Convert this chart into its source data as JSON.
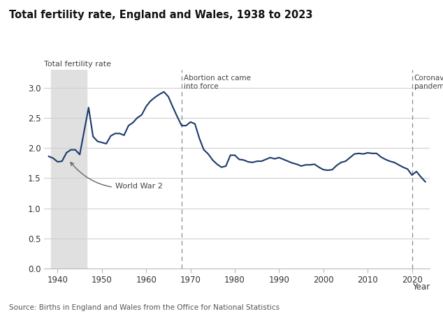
{
  "title": "Total fertility rate, England and Wales, 1938 to 2023",
  "ylabel": "Total fertility rate",
  "xlabel": "Year",
  "source": "Source: Births in England and Wales from the Office for National Statistics",
  "line_color": "#1a3a6b",
  "background_color": "#ffffff",
  "ww2_shade_color": "#e0e0e0",
  "ww2_start": 1938.5,
  "ww2_end": 1946.5,
  "abortion_act_year": 1968,
  "covid_year": 2020,
  "ylim": [
    0.0,
    3.3
  ],
  "yticks": [
    0.0,
    0.5,
    1.0,
    1.5,
    2.0,
    2.5,
    3.0
  ],
  "xlim": [
    1937,
    2024
  ],
  "xticks": [
    1940,
    1950,
    1960,
    1970,
    1980,
    1990,
    2000,
    2010,
    2020
  ],
  "years": [
    1938,
    1939,
    1940,
    1941,
    1942,
    1943,
    1944,
    1945,
    1946,
    1947,
    1948,
    1949,
    1950,
    1951,
    1952,
    1953,
    1954,
    1955,
    1956,
    1957,
    1958,
    1959,
    1960,
    1961,
    1962,
    1963,
    1964,
    1965,
    1966,
    1967,
    1968,
    1969,
    1970,
    1971,
    1972,
    1973,
    1974,
    1975,
    1976,
    1977,
    1978,
    1979,
    1980,
    1981,
    1982,
    1983,
    1984,
    1985,
    1986,
    1987,
    1988,
    1989,
    1990,
    1991,
    1992,
    1993,
    1994,
    1995,
    1996,
    1997,
    1998,
    1999,
    2000,
    2001,
    2002,
    2003,
    2004,
    2005,
    2006,
    2007,
    2008,
    2009,
    2010,
    2011,
    2012,
    2013,
    2014,
    2015,
    2016,
    2017,
    2018,
    2019,
    2020,
    2021,
    2022,
    2023
  ],
  "tfr": [
    1.86,
    1.83,
    1.77,
    1.78,
    1.92,
    1.97,
    1.97,
    1.89,
    2.28,
    2.67,
    2.19,
    2.11,
    2.09,
    2.07,
    2.2,
    2.24,
    2.24,
    2.21,
    2.37,
    2.42,
    2.5,
    2.55,
    2.69,
    2.78,
    2.84,
    2.89,
    2.93,
    2.85,
    2.68,
    2.52,
    2.37,
    2.37,
    2.43,
    2.4,
    2.16,
    1.97,
    1.9,
    1.8,
    1.73,
    1.68,
    1.7,
    1.88,
    1.88,
    1.81,
    1.8,
    1.77,
    1.76,
    1.78,
    1.78,
    1.81,
    1.84,
    1.82,
    1.84,
    1.81,
    1.78,
    1.75,
    1.73,
    1.7,
    1.72,
    1.72,
    1.73,
    1.68,
    1.64,
    1.63,
    1.64,
    1.71,
    1.76,
    1.78,
    1.84,
    1.9,
    1.91,
    1.9,
    1.92,
    1.91,
    1.91,
    1.85,
    1.81,
    1.78,
    1.76,
    1.72,
    1.68,
    1.65,
    1.55,
    1.61,
    1.52,
    1.44
  ]
}
